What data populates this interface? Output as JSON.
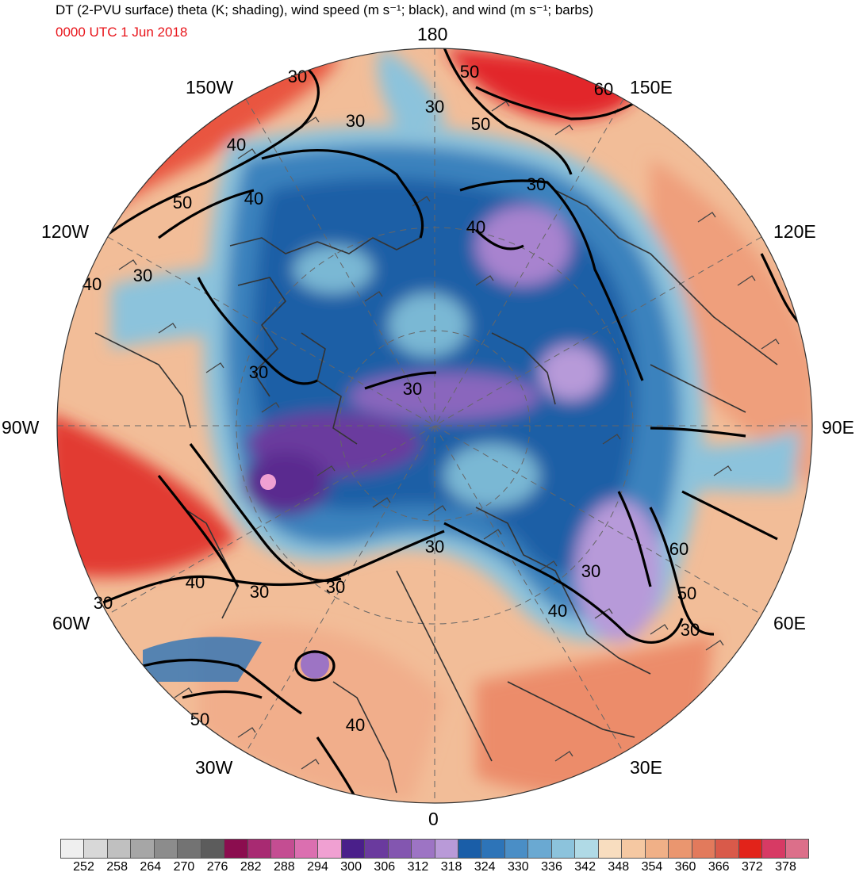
{
  "title": "DT (2-PVU surface) theta (K; shading), wind speed (m s⁻¹; black), and wind (m s⁻¹; barbs)",
  "valid_time": "0000 UTC 1 Jun 2018",
  "projection": "north polar stereographic",
  "longitude_labels": [
    "180",
    "150E",
    "120E",
    "90E",
    "60E",
    "30E",
    "0",
    "30W",
    "60W",
    "90W",
    "120W",
    "150W"
  ],
  "isotach_labels": [
    "30",
    "30",
    "30",
    "30",
    "30",
    "30",
    "30",
    "30",
    "30",
    "30",
    "30",
    "30",
    "30",
    "40",
    "40",
    "40",
    "40",
    "40",
    "40",
    "40",
    "50",
    "50",
    "50",
    "50",
    "50",
    "60",
    "60"
  ],
  "colorbar": {
    "tick_labels": [
      "252",
      "258",
      "264",
      "270",
      "276",
      "282",
      "288",
      "294",
      "300",
      "306",
      "312",
      "318",
      "324",
      "330",
      "336",
      "342",
      "348",
      "354",
      "360",
      "366",
      "372",
      "378"
    ],
    "colors": [
      "#efefef",
      "#d8d8d8",
      "#c0c0c0",
      "#a6a6a6",
      "#8c8c8c",
      "#737373",
      "#5c5c5c",
      "#8b0d4f",
      "#a82a72",
      "#c44d92",
      "#db6fb0",
      "#f0a0d2",
      "#4a1f8a",
      "#6a3a9e",
      "#8356b0",
      "#9d74c4",
      "#b99ad8",
      "#1a5ea8",
      "#2d74b8",
      "#4a8ec6",
      "#6aa9d2",
      "#8cc3dc",
      "#b0dae6",
      "#f8ddbf",
      "#f5c8a2",
      "#f0b087",
      "#ea966f",
      "#e27a5c",
      "#d95a4a",
      "#e2231a",
      "#d73a64",
      "#dc6f8a"
    ]
  },
  "shading_colors": {
    "ocean_deep": "#1c5fa6",
    "ocean_mid": "#3a82bd",
    "ocean_light": "#7ab8d4",
    "purple": "#8a66bd",
    "lavender": "#b79ad9",
    "peach": "#f4c6a3",
    "salmon": "#ea9673",
    "red": "#e3262a"
  }
}
